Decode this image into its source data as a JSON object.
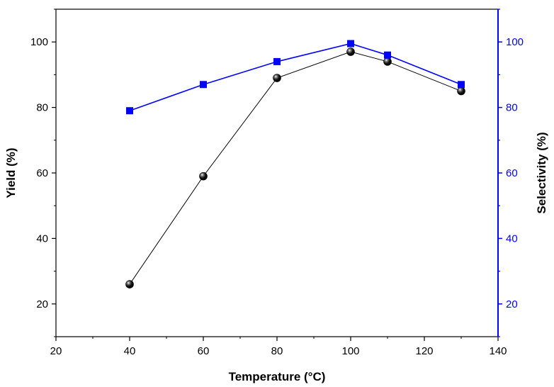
{
  "chart_data": {
    "type": "scatter",
    "title": "",
    "xlabel": "Temperature (°C)",
    "ylabel_left": "Yield (%)",
    "ylabel_right": "Selectivity (%)",
    "xlim": [
      20,
      140
    ],
    "ylim_left": [
      10,
      110
    ],
    "ylim_right": [
      10,
      110
    ],
    "x_ticks": [
      20,
      40,
      60,
      80,
      100,
      120,
      140
    ],
    "y_ticks_left": [
      20,
      40,
      60,
      80,
      100
    ],
    "y_ticks_right": [
      20,
      40,
      60,
      80,
      100
    ],
    "grid": false,
    "series": [
      {
        "name": "Yield",
        "axis": "left",
        "marker": "sphere",
        "color": "#000000",
        "line_color": "#000000",
        "x": [
          40,
          60,
          80,
          100,
          110,
          130
        ],
        "values": [
          26,
          59,
          89,
          97,
          94,
          85
        ]
      },
      {
        "name": "Selectivity",
        "axis": "right",
        "marker": "square",
        "color": "#0000ff",
        "line_color": "#0000ff",
        "x": [
          40,
          60,
          80,
          100,
          110,
          130
        ],
        "values": [
          79,
          87,
          94,
          99.5,
          96,
          87
        ]
      }
    ],
    "colors": {
      "left_axis": "#000000",
      "right_axis": "#0000ff"
    }
  }
}
